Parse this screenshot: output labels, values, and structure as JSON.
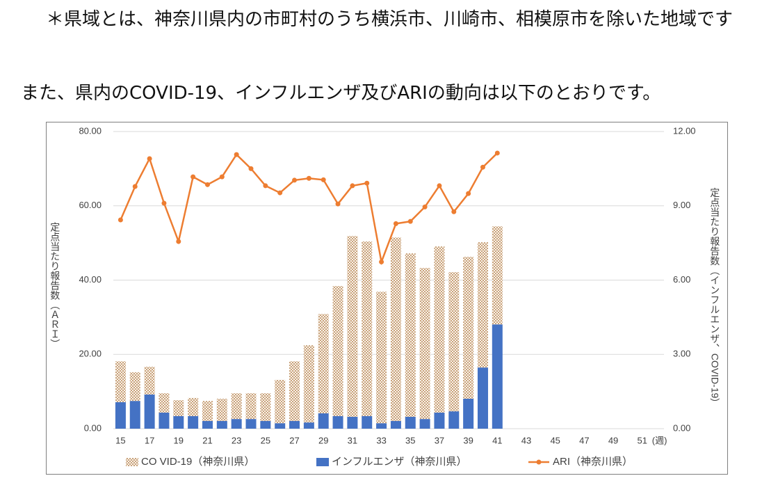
{
  "notes": [
    "＊県域とは、神奈川県内の市町村のうち横浜市、川崎市、相模原市を除いた地域です",
    "また、県内のCOVID-19、インフルエンザ及びARIの動向は以下のとおりです。"
  ],
  "chart_data": {
    "type": "combo",
    "y_label": "定点当たり報告数（ＡＲＩ）",
    "y2_label": "定点当たり報告数（インフルエンザ、COVID-19）",
    "x_label": "(週)",
    "categories": [
      "15",
      null,
      "17",
      null,
      "19",
      null,
      "21",
      null,
      "23",
      null,
      "25",
      null,
      "27",
      null,
      "29",
      null,
      "31",
      null,
      "33",
      null,
      "35",
      null,
      "37",
      null,
      "39",
      null,
      "41",
      null,
      "43",
      null,
      "45",
      null,
      "47",
      null,
      "49",
      null,
      "51",
      null
    ],
    "series": [
      {
        "name": "CO VID-19（神奈川県）",
        "type": "bar",
        "axis": "y2",
        "color": "#c8a27c",
        "values": [
          1.65,
          1.16,
          1.12,
          0.78,
          0.64,
          0.73,
          0.81,
          0.9,
          1.04,
          1.04,
          1.12,
          1.75,
          2.41,
          3.12,
          4.01,
          5.25,
          7.3,
          7.05,
          5.31,
          7.41,
          6.6,
          6.1,
          6.71,
          5.62,
          5.73,
          5.06,
          3.96,
          null,
          null,
          null,
          null,
          null,
          null,
          null,
          null,
          null,
          null,
          null
        ]
      },
      {
        "name": "インフルエンザ（神奈川県）",
        "type": "bar",
        "axis": "y2",
        "color": "#4472c4",
        "values": [
          1.07,
          1.12,
          1.38,
          0.65,
          0.51,
          0.51,
          0.31,
          0.31,
          0.39,
          0.39,
          0.31,
          0.22,
          0.31,
          0.25,
          0.62,
          0.51,
          0.48,
          0.51,
          0.22,
          0.31,
          0.48,
          0.39,
          0.65,
          0.7,
          1.21,
          2.47,
          4.21,
          null,
          null,
          null,
          null,
          null,
          null,
          null,
          null,
          null,
          null,
          null
        ]
      },
      {
        "name": "ARI（神奈川県）",
        "type": "line",
        "axis": "y",
        "color": "#ed7d31",
        "values": [
          56.2,
          65.2,
          72.7,
          60.7,
          50.4,
          67.8,
          65.7,
          67.8,
          73.8,
          70.0,
          65.4,
          63.5,
          66.9,
          67.4,
          67.0,
          60.5,
          65.4,
          66.1,
          44.9,
          55.2,
          55.8,
          59.7,
          65.4,
          58.4,
          63.3,
          70.4,
          74.2,
          null,
          null,
          null,
          null,
          null,
          null,
          null,
          null,
          null,
          null,
          null
        ]
      }
    ],
    "ylim": [
      0,
      80
    ],
    "yticks": [
      {
        "value": 0,
        "label": "0.00"
      },
      {
        "value": 20,
        "label": "20.00"
      },
      {
        "value": 40,
        "label": "40.00"
      },
      {
        "value": 60,
        "label": "60.00"
      },
      {
        "value": 80,
        "label": "80.00"
      }
    ],
    "y2lim": [
      0,
      12
    ],
    "y2ticks": [
      {
        "value": 0,
        "label": "0.00"
      },
      {
        "value": 3,
        "label": "3.00"
      },
      {
        "value": 6,
        "label": "6.00"
      },
      {
        "value": 9,
        "label": "9.00"
      },
      {
        "value": 12,
        "label": "12.00"
      }
    ],
    "grid": true,
    "legend": "bottom"
  }
}
